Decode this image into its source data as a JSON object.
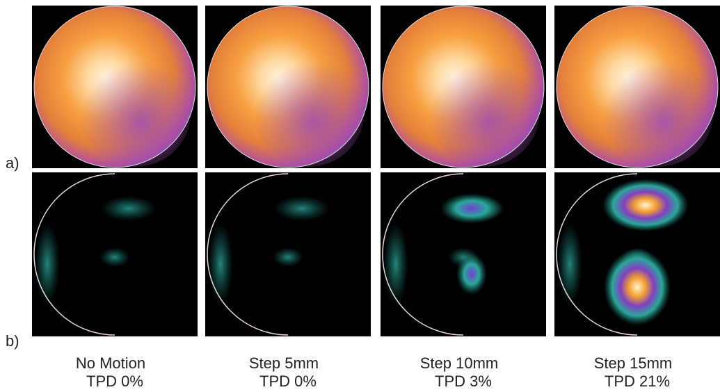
{
  "row_labels": [
    "a)",
    "b)"
  ],
  "panels": [
    {
      "name": "No Motion",
      "tpd": "TPD 0%"
    },
    {
      "name": "Step 5mm",
      "tpd": "TPD 0%"
    },
    {
      "name": "Step 10mm",
      "tpd": "TPD 3%"
    },
    {
      "name": "Step 15mm",
      "tpd": "TPD 21%"
    }
  ]
}
